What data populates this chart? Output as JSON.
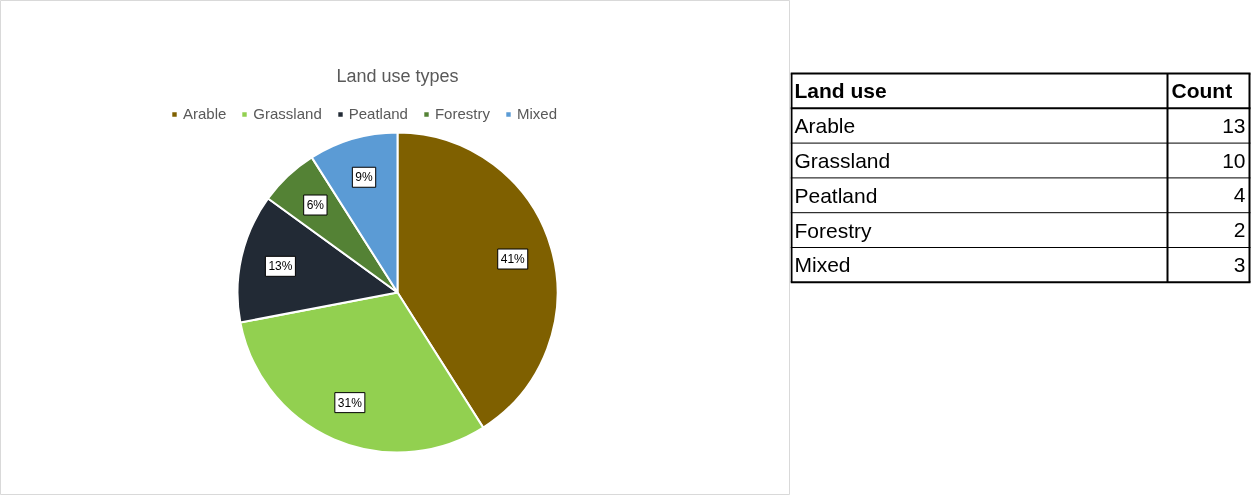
{
  "chart_data": [
    {
      "type": "pie",
      "title": "Land use types",
      "categories": [
        "Arable",
        "Grassland",
        "Peatland",
        "Forestry",
        "Mixed"
      ],
      "values": [
        41,
        31,
        13,
        6,
        9
      ],
      "colors": [
        "#7f6000",
        "#92d050",
        "#222a35",
        "#548235",
        "#5b9bd5"
      ],
      "value_labels": [
        "41%",
        "31%",
        "13%",
        "6%",
        "9%"
      ],
      "legend": "top"
    },
    {
      "type": "other",
      "xlabel": "Land use",
      "ylabel": "Count",
      "categories": [
        "Arable",
        "Grassland",
        "Peatland",
        "Forestry",
        "Mixed"
      ],
      "values": [
        13,
        10,
        4,
        2,
        3
      ],
      "data_labels": true
    }
  ]
}
